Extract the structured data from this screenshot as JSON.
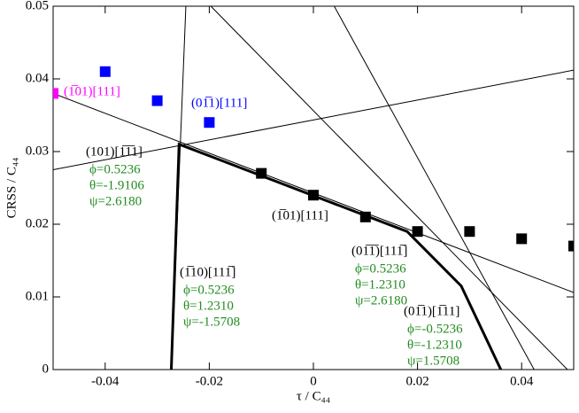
{
  "chart_data": {
    "type": "scatter",
    "xlabel": "τ / C₄₄",
    "ylabel": "CRSS / C₄₄",
    "xlim": [
      -0.05,
      0.05
    ],
    "ylim": [
      0,
      0.05
    ],
    "xticks": [
      -0.04,
      -0.02,
      0,
      0.02,
      0.04
    ],
    "yticks": [
      0,
      0.01,
      0.02,
      0.03,
      0.04,
      0.05
    ],
    "points": [
      {
        "color": "#000000",
        "x": [
          -0.01,
          0,
          0.01,
          0.02,
          0.03,
          0.04,
          0.05
        ],
        "values": [
          0.027,
          0.024,
          0.021,
          0.019,
          0.019,
          0.018,
          0.017
        ]
      },
      {
        "color": "#0000ff",
        "x": [
          -0.04,
          -0.03,
          -0.02
        ],
        "values": [
          0.041,
          0.037,
          0.034
        ]
      },
      {
        "color": "#ff00ff",
        "x": [
          -0.05
        ],
        "values": [
          0.038
        ]
      }
    ],
    "lines": [
      {
        "color": "#000000",
        "line_width": 1,
        "x": [
          -0.05,
          0.05
        ],
        "values": [
          0.0275,
          0.0412
        ]
      },
      {
        "color": "#000000",
        "line_width": 1,
        "x": [
          -0.05,
          0.05
        ],
        "values": [
          0.038,
          0.0106
        ]
      },
      {
        "color": "#000000",
        "line_width": 1,
        "x": [
          -0.0273,
          -0.0245
        ],
        "values": [
          0,
          0.05
        ]
      },
      {
        "color": "#000000",
        "line_width": 1,
        "x": [
          -0.0197,
          0.0488
        ],
        "values": [
          0.05,
          0
        ]
      },
      {
        "color": "#000000",
        "line_width": 1,
        "x": [
          0.004,
          0.0424
        ],
        "values": [
          0.05,
          0
        ]
      },
      {
        "color": "#000000",
        "line_width": 3,
        "x": [
          -0.0273,
          -0.0258,
          0.018,
          0.0284,
          0.036
        ],
        "values": [
          0,
          0.031,
          0.019,
          0.0115,
          0
        ]
      }
    ],
    "annotations": [
      {
        "text": "(1̅01)[111]",
        "color": "#ff00ff",
        "params": []
      },
      {
        "text": "(01̅1)[111]",
        "color": "#0000ff",
        "params": []
      },
      {
        "text": "(101)[1̅1̅1]",
        "color": "#000000",
        "params": [
          "ϕ=0.5236",
          "θ=-1.9106",
          "ψ=2.6180"
        ]
      },
      {
        "text": "(1̅01)[111]",
        "color": "#000000",
        "params": []
      },
      {
        "text": "(01̅1̅)[111̅]",
        "color": "#000000",
        "params": [
          "ϕ=0.5236",
          "θ=1.2310",
          "ψ=2.6180"
        ]
      },
      {
        "text": "(1̅10)[111̅]",
        "color": "#000000",
        "params": [
          "ϕ=0.5236",
          "θ=1.2310",
          "ψ=-1.5708"
        ]
      },
      {
        "text": "(01̅1)[1̅11]",
        "color": "#000000",
        "params": [
          "ϕ=-0.5236",
          "θ=-1.2310",
          "ψ=1.5708"
        ]
      }
    ],
    "param_color": "#228b22"
  }
}
